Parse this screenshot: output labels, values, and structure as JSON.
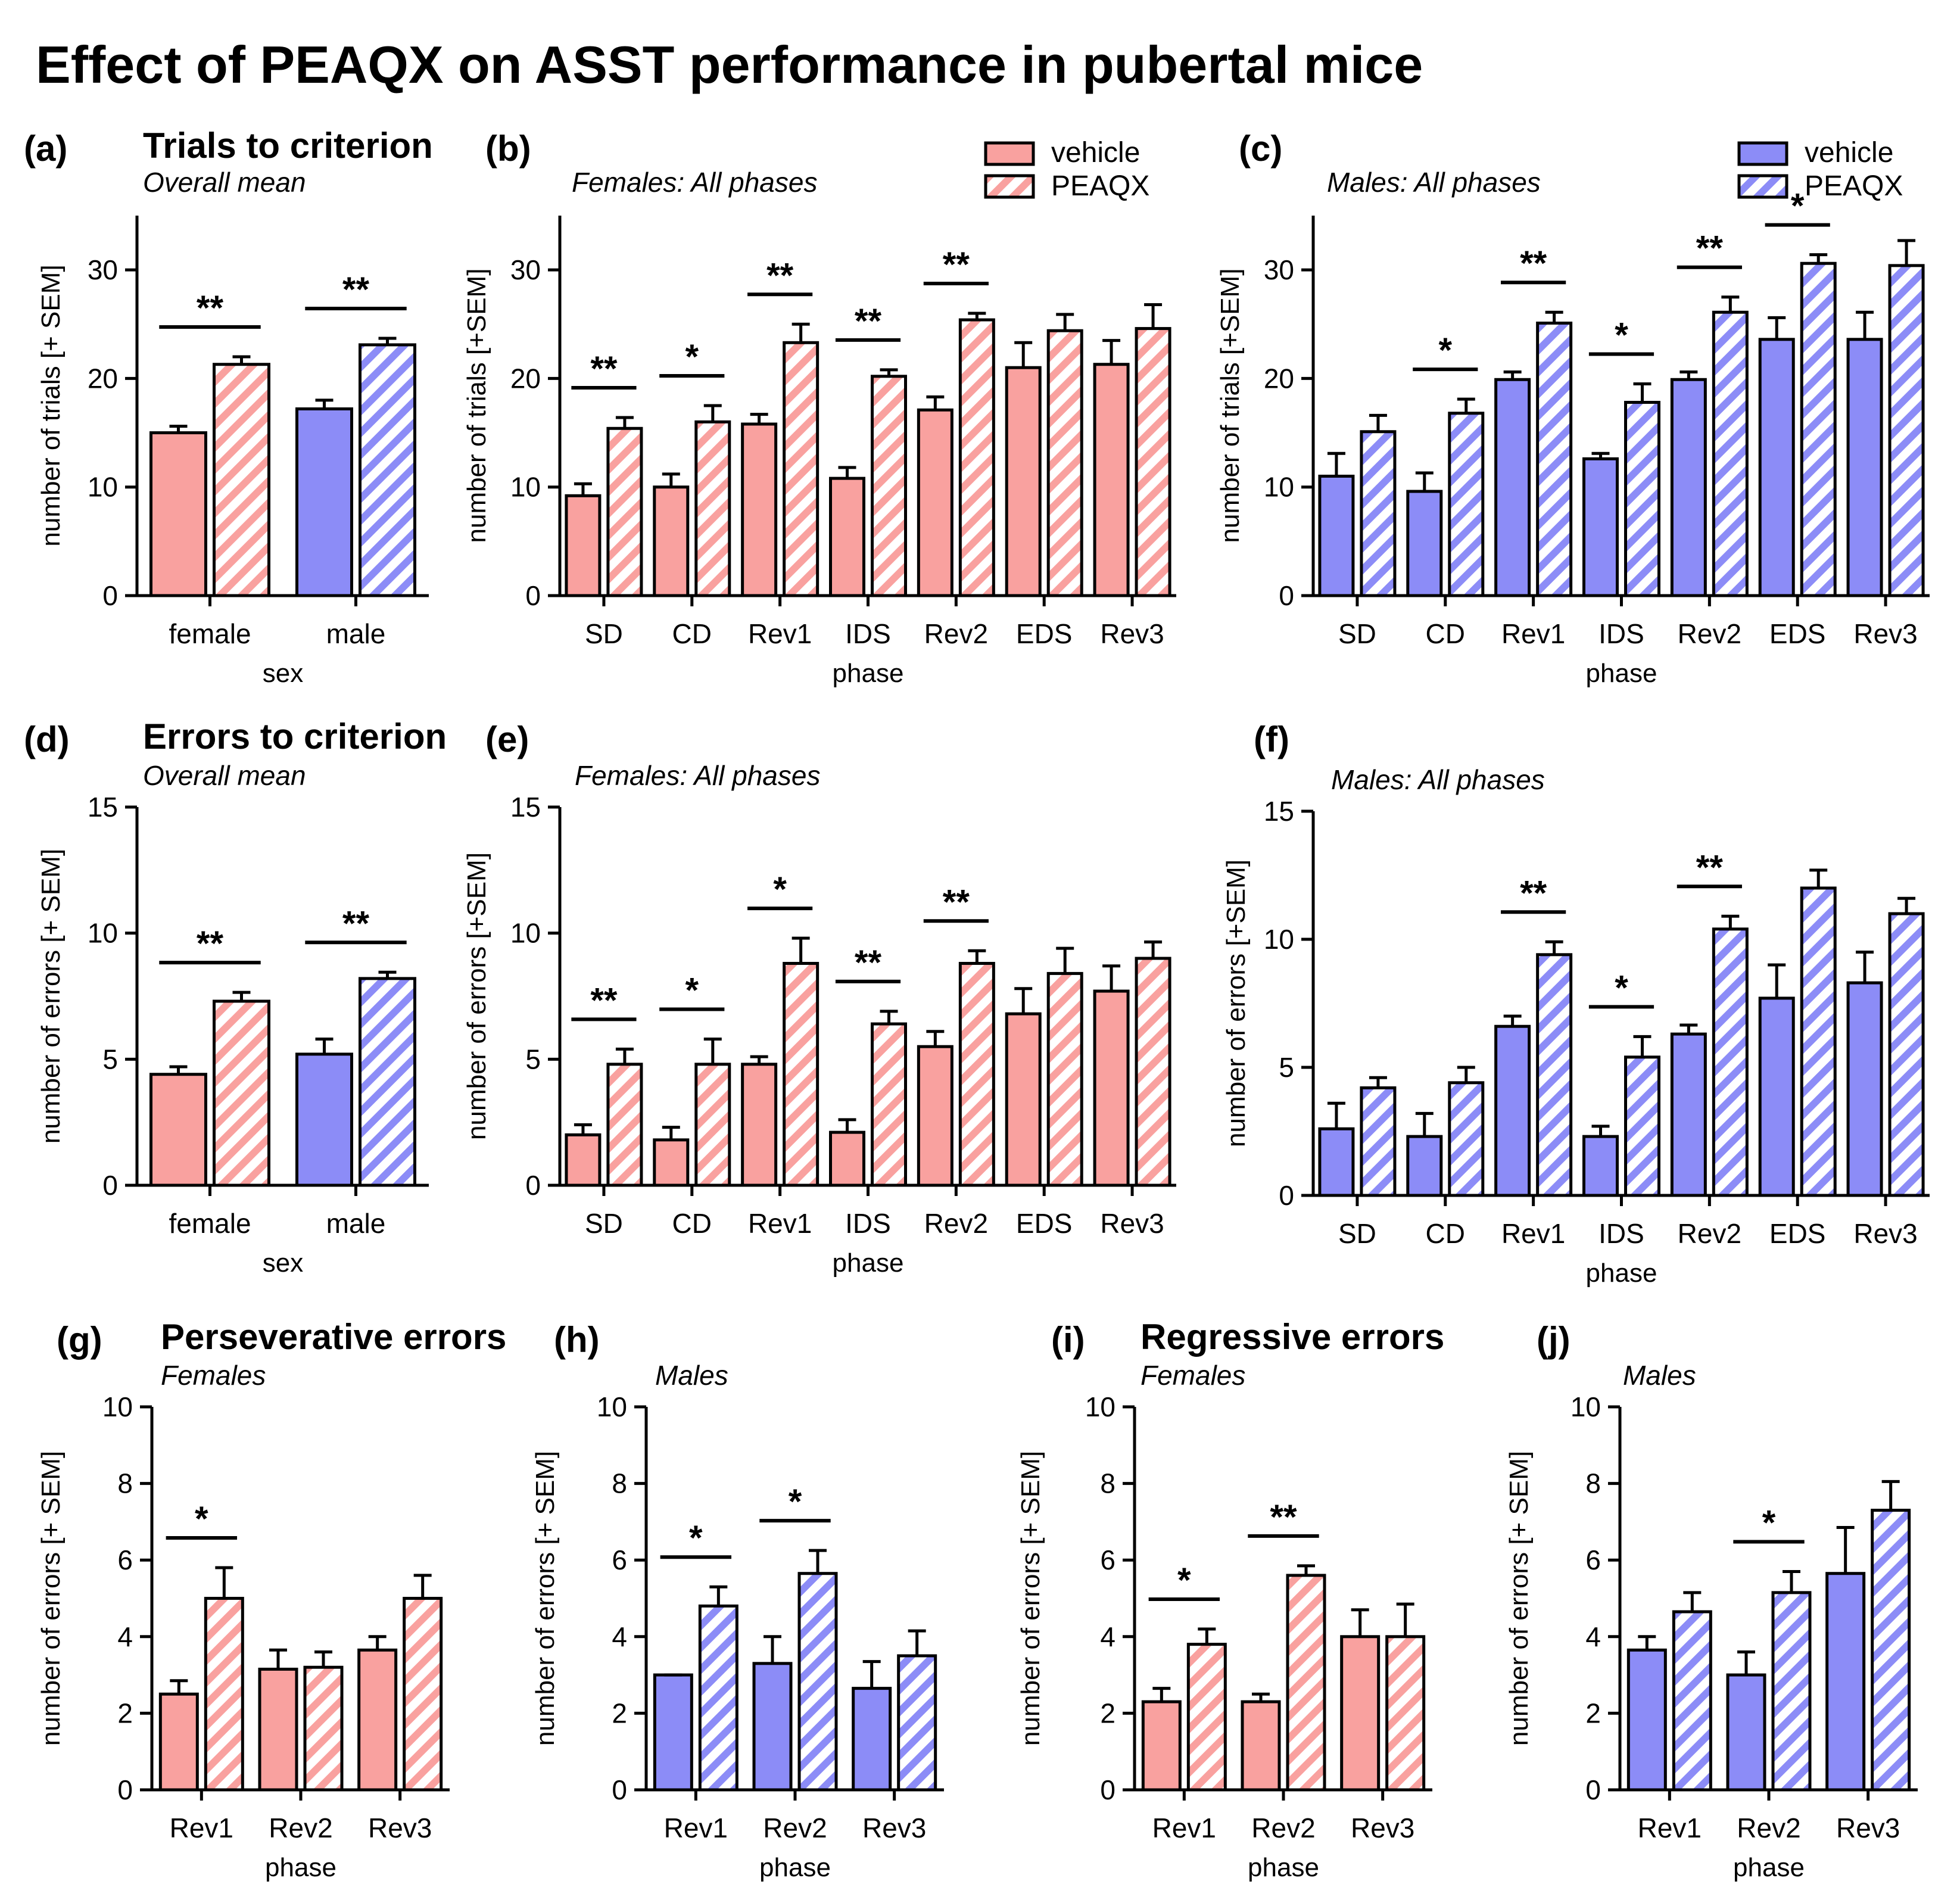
{
  "figure_title": "Effect of PEAQX on ASST performance in pubertal mice",
  "colors": {
    "female": "#f9a19f",
    "male": "#8c8cf7",
    "outline": "#000000",
    "background": "#ffffff"
  },
  "legend": {
    "vehicle_label": "vehicle",
    "peaqx_label": "PEAQX"
  },
  "chart_data": [
    {
      "id": "a",
      "type": "bar",
      "panel_label": "(a)",
      "heading": "Trials to criterion",
      "subtitle": "Overall mean",
      "xlabel": "sex",
      "ylabel": "number of trials [+ SEM]",
      "ylim": [
        0,
        35
      ],
      "yticks": [
        0,
        10,
        20,
        30
      ],
      "categories": [
        "female",
        "male"
      ],
      "series": [
        {
          "name": "vehicle",
          "values": [
            15.0,
            17.2
          ],
          "sem": [
            0.6,
            0.8
          ]
        },
        {
          "name": "PEAQX",
          "values": [
            21.3,
            23.1
          ],
          "sem": [
            0.7,
            0.6
          ]
        }
      ],
      "colors_by_category": [
        "female",
        "male"
      ],
      "significance": [
        "**",
        "**"
      ]
    },
    {
      "id": "b",
      "type": "bar",
      "panel_label": "(b)",
      "subtitle": "Females: All phases",
      "xlabel": "phase",
      "ylabel": "number of trials [+SEM]",
      "ylim": [
        0,
        35
      ],
      "yticks": [
        0,
        10,
        20,
        30
      ],
      "categories": [
        "SD",
        "CD",
        "Rev1",
        "IDS",
        "Rev2",
        "EDS",
        "Rev3"
      ],
      "series": [
        {
          "name": "vehicle",
          "values": [
            9.2,
            10.0,
            15.8,
            10.8,
            17.1,
            21.0,
            21.3
          ],
          "sem": [
            1.1,
            1.2,
            0.9,
            1.0,
            1.2,
            2.3,
            2.2
          ]
        },
        {
          "name": "PEAQX",
          "values": [
            15.4,
            16.0,
            23.3,
            20.2,
            25.4,
            24.4,
            24.6
          ],
          "sem": [
            1.0,
            1.5,
            1.7,
            0.6,
            0.6,
            1.5,
            2.2
          ]
        }
      ],
      "group": "female",
      "significance": [
        "**",
        "*",
        "**",
        "**",
        "**",
        "",
        ""
      ]
    },
    {
      "id": "c",
      "type": "bar",
      "panel_label": "(c)",
      "subtitle": "Males: All phases",
      "xlabel": "phase",
      "ylabel": "number of trials [+SEM]",
      "ylim": [
        0,
        35
      ],
      "yticks": [
        0,
        10,
        20,
        30
      ],
      "categories": [
        "SD",
        "CD",
        "Rev1",
        "IDS",
        "Rev2",
        "EDS",
        "Rev3"
      ],
      "series": [
        {
          "name": "vehicle",
          "values": [
            11.0,
            9.6,
            19.9,
            12.6,
            19.9,
            23.6,
            23.6
          ],
          "sem": [
            2.1,
            1.7,
            0.7,
            0.5,
            0.7,
            2.0,
            2.5
          ]
        },
        {
          "name": "PEAQX",
          "values": [
            15.1,
            16.8,
            25.1,
            17.8,
            26.1,
            30.6,
            30.4
          ],
          "sem": [
            1.5,
            1.3,
            1.0,
            1.7,
            1.4,
            0.8,
            2.3
          ]
        }
      ],
      "group": "male",
      "significance": [
        "",
        "*",
        "**",
        "*",
        "**",
        "*",
        ""
      ]
    },
    {
      "id": "d",
      "type": "bar",
      "panel_label": "(d)",
      "heading": "Errors to criterion",
      "subtitle": "Overall mean",
      "xlabel": "sex",
      "ylabel": "number of errors [+ SEM]",
      "ylim": [
        0,
        15
      ],
      "yticks": [
        0,
        5,
        10,
        15
      ],
      "categories": [
        "female",
        "male"
      ],
      "series": [
        {
          "name": "vehicle",
          "values": [
            4.4,
            5.2
          ],
          "sem": [
            0.3,
            0.6
          ]
        },
        {
          "name": "PEAQX",
          "values": [
            7.3,
            8.2
          ],
          "sem": [
            0.35,
            0.25
          ]
        }
      ],
      "colors_by_category": [
        "female",
        "male"
      ],
      "significance": [
        "**",
        "**"
      ]
    },
    {
      "id": "e",
      "type": "bar",
      "panel_label": "(e)",
      "subtitle": "Females: All phases",
      "xlabel": "phase",
      "ylabel": "number of errors [+SEM]",
      "ylim": [
        0,
        15
      ],
      "yticks": [
        0,
        5,
        10,
        15
      ],
      "categories": [
        "SD",
        "CD",
        "Rev1",
        "IDS",
        "Rev2",
        "EDS",
        "Rev3"
      ],
      "series": [
        {
          "name": "vehicle",
          "values": [
            2.0,
            1.8,
            4.8,
            2.1,
            5.5,
            6.8,
            7.7
          ],
          "sem": [
            0.4,
            0.5,
            0.3,
            0.5,
            0.6,
            1.0,
            1.0
          ]
        },
        {
          "name": "PEAQX",
          "values": [
            4.8,
            4.8,
            8.8,
            6.4,
            8.8,
            8.4,
            9.0
          ],
          "sem": [
            0.6,
            1.0,
            1.0,
            0.5,
            0.5,
            1.0,
            0.65
          ]
        }
      ],
      "group": "female",
      "significance": [
        "**",
        "*",
        "*",
        "**",
        "**",
        "",
        ""
      ]
    },
    {
      "id": "f",
      "type": "bar",
      "panel_label": "(f)",
      "subtitle": "Males: All phases",
      "xlabel": "phase",
      "ylabel": "number of errors [+SEM]",
      "ylim": [
        0,
        15
      ],
      "yticks": [
        0,
        5,
        10,
        15
      ],
      "categories": [
        "SD",
        "CD",
        "Rev1",
        "IDS",
        "Rev2",
        "EDS",
        "Rev3"
      ],
      "series": [
        {
          "name": "vehicle",
          "values": [
            2.6,
            2.3,
            6.6,
            2.3,
            6.3,
            7.7,
            8.3
          ],
          "sem": [
            1.0,
            0.9,
            0.4,
            0.4,
            0.35,
            1.3,
            1.2
          ]
        },
        {
          "name": "PEAQX",
          "values": [
            4.2,
            4.4,
            9.4,
            5.4,
            10.4,
            12.0,
            11.0
          ],
          "sem": [
            0.4,
            0.6,
            0.5,
            0.8,
            0.5,
            0.7,
            0.6
          ]
        }
      ],
      "group": "male",
      "significance": [
        "",
        "",
        "**",
        "*",
        "**",
        "",
        ""
      ]
    },
    {
      "id": "g",
      "type": "bar",
      "panel_label": "(g)",
      "heading": "Perseverative errors",
      "subtitle": "Females",
      "xlabel": "phase",
      "ylabel": "number of errors [+ SEM]",
      "ylim": [
        0,
        10
      ],
      "yticks": [
        0,
        2,
        4,
        6,
        8,
        10
      ],
      "categories": [
        "Rev1",
        "Rev2",
        "Rev3"
      ],
      "series": [
        {
          "name": "vehicle",
          "values": [
            2.5,
            3.15,
            3.65
          ],
          "sem": [
            0.35,
            0.5,
            0.35
          ]
        },
        {
          "name": "PEAQX",
          "values": [
            5.0,
            3.2,
            5.0
          ],
          "sem": [
            0.8,
            0.4,
            0.6
          ]
        }
      ],
      "group": "female",
      "significance": [
        "*",
        "",
        ""
      ]
    },
    {
      "id": "h",
      "type": "bar",
      "panel_label": "(h)",
      "subtitle": "Males",
      "xlabel": "phase",
      "ylabel": "number of errors [+ SEM]",
      "ylim": [
        0,
        10
      ],
      "yticks": [
        0,
        2,
        4,
        6,
        8,
        10
      ],
      "categories": [
        "Rev1",
        "Rev2",
        "Rev3"
      ],
      "series": [
        {
          "name": "vehicle",
          "values": [
            3.0,
            3.3,
            2.65
          ],
          "sem": [
            0.0,
            0.7,
            0.7
          ]
        },
        {
          "name": "PEAQX",
          "values": [
            4.8,
            5.65,
            3.5
          ],
          "sem": [
            0.5,
            0.6,
            0.65
          ]
        }
      ],
      "group": "male",
      "significance": [
        "*",
        "*",
        ""
      ]
    },
    {
      "id": "i",
      "type": "bar",
      "panel_label": "(i)",
      "heading": "Regressive errors",
      "subtitle": "Females",
      "xlabel": "phase",
      "ylabel": "number of errors [+ SEM]",
      "ylim": [
        0,
        10
      ],
      "yticks": [
        0,
        2,
        4,
        6,
        8,
        10
      ],
      "categories": [
        "Rev1",
        "Rev2",
        "Rev3"
      ],
      "series": [
        {
          "name": "vehicle",
          "values": [
            2.3,
            2.3,
            4.0
          ],
          "sem": [
            0.35,
            0.2,
            0.7
          ]
        },
        {
          "name": "PEAQX",
          "values": [
            3.8,
            5.6,
            4.0
          ],
          "sem": [
            0.4,
            0.25,
            0.85
          ]
        }
      ],
      "group": "female",
      "significance": [
        "*",
        "**",
        ""
      ]
    },
    {
      "id": "j",
      "type": "bar",
      "panel_label": "(j)",
      "subtitle": "Males",
      "xlabel": "phase",
      "ylabel": "number of errors [+ SEM]",
      "ylim": [
        0,
        10
      ],
      "yticks": [
        0,
        2,
        4,
        6,
        8,
        10
      ],
      "categories": [
        "Rev1",
        "Rev2",
        "Rev3"
      ],
      "series": [
        {
          "name": "vehicle",
          "values": [
            3.65,
            3.0,
            5.65
          ],
          "sem": [
            0.35,
            0.6,
            1.2
          ]
        },
        {
          "name": "PEAQX",
          "values": [
            4.65,
            5.15,
            7.3
          ],
          "sem": [
            0.5,
            0.55,
            0.75
          ]
        }
      ],
      "group": "male",
      "significance": [
        "",
        "*",
        ""
      ]
    }
  ]
}
